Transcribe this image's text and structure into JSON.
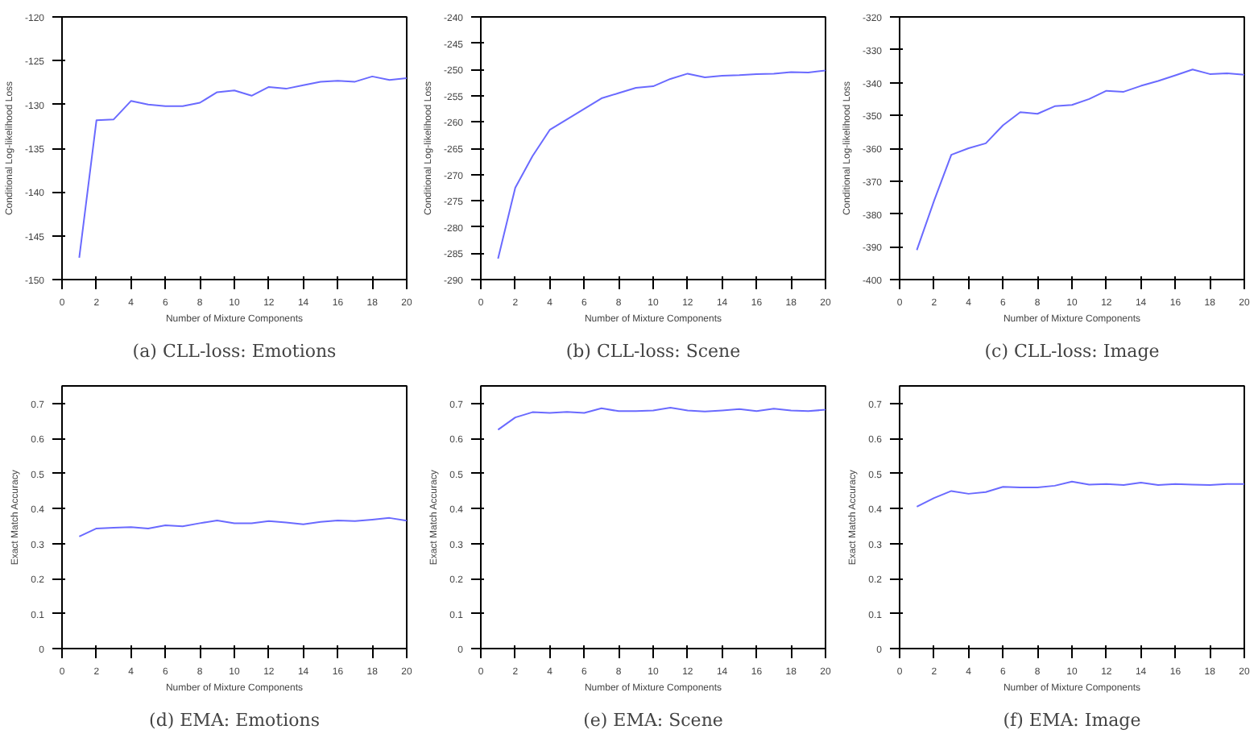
{
  "chart_data": [
    {
      "type": "line",
      "title": "(a) CLL-loss: Emotions",
      "xlabel": "Number of Mixture Components",
      "ylabel": "Conditional Log-likelihood Loss",
      "x": [
        1,
        2,
        3,
        4,
        5,
        6,
        7,
        8,
        9,
        10,
        11,
        12,
        13,
        14,
        15,
        16,
        17,
        18,
        19,
        20
      ],
      "xlim": [
        0,
        20
      ],
      "xticks": [
        0,
        2,
        4,
        6,
        8,
        10,
        12,
        14,
        16,
        18,
        20
      ],
      "ylim": [
        -150,
        -120
      ],
      "yticks": [
        -150,
        -145,
        -140,
        -135,
        -130,
        -125,
        -120
      ],
      "grid": false,
      "series": [
        {
          "color": "#6a6aff",
          "values": [
            -147.5,
            -131.8,
            -131.7,
            -129.6,
            -130.0,
            -130.2,
            -130.2,
            -129.8,
            -128.6,
            -128.4,
            -129.0,
            -128.0,
            -128.2,
            -127.8,
            -127.4,
            -127.3,
            -127.4,
            -126.8,
            -127.2,
            -127.0
          ]
        }
      ]
    },
    {
      "type": "line",
      "title": "(b) CLL-loss: Scene",
      "xlabel": "Number of Mixture Components",
      "ylabel": "Conditional Log-likelihood Loss",
      "x": [
        1,
        2,
        3,
        4,
        5,
        6,
        7,
        8,
        9,
        10,
        11,
        12,
        13,
        14,
        15,
        16,
        17,
        18,
        19,
        20
      ],
      "xlim": [
        0,
        20
      ],
      "xticks": [
        0,
        2,
        4,
        6,
        8,
        10,
        12,
        14,
        16,
        18,
        20
      ],
      "ylim": [
        -290,
        -240
      ],
      "yticks": [
        -290,
        -285,
        -280,
        -275,
        -270,
        -265,
        -260,
        -255,
        -250,
        -245,
        -240
      ],
      "grid": false,
      "series": [
        {
          "color": "#6a6aff",
          "values": [
            -286,
            -272.5,
            -266.5,
            -261.5,
            -259.5,
            -257.5,
            -255.5,
            -254.5,
            -253.5,
            -253.2,
            -251.8,
            -250.8,
            -251.5,
            -251.2,
            -251.1,
            -250.9,
            -250.8,
            -250.5,
            -250.6,
            -250.2
          ]
        }
      ]
    },
    {
      "type": "line",
      "title": "(c) CLL-loss: Image",
      "xlabel": "Number of Mixture Components",
      "ylabel": "Conditional Log-likelihood Loss",
      "x": [
        1,
        2,
        3,
        4,
        5,
        6,
        7,
        8,
        9,
        10,
        11,
        12,
        13,
        14,
        15,
        16,
        17,
        18,
        19,
        20
      ],
      "xlim": [
        0,
        20
      ],
      "xticks": [
        0,
        2,
        4,
        6,
        8,
        10,
        12,
        14,
        16,
        18,
        20
      ],
      "ylim": [
        -400,
        -320
      ],
      "yticks": [
        -400,
        -390,
        -380,
        -370,
        -360,
        -350,
        -340,
        -330,
        -320
      ],
      "grid": false,
      "series": [
        {
          "color": "#6a6aff",
          "values": [
            -391,
            -376,
            -362,
            -360,
            -358.5,
            -353,
            -349,
            -349.5,
            -347.2,
            -346.8,
            -345,
            -342.5,
            -342.8,
            -341,
            -339.5,
            -337.8,
            -336,
            -337.4,
            -337.2,
            -337.6
          ]
        }
      ]
    },
    {
      "type": "line",
      "title": "(d) EMA: Emotions",
      "xlabel": "Number of Mixture Components",
      "ylabel": "Exact Match Accuracy",
      "x": [
        1,
        2,
        3,
        4,
        5,
        6,
        7,
        8,
        9,
        10,
        11,
        12,
        13,
        14,
        15,
        16,
        17,
        18,
        19,
        20
      ],
      "xlim": [
        0,
        20
      ],
      "xticks": [
        0,
        2,
        4,
        6,
        8,
        10,
        12,
        14,
        16,
        18,
        20
      ],
      "ylim": [
        0,
        0.75
      ],
      "yticks": [
        0,
        0.1,
        0.2,
        0.3,
        0.4,
        0.5,
        0.6,
        0.7
      ],
      "grid": false,
      "series": [
        {
          "color": "#6a6aff",
          "values": [
            0.32,
            0.343,
            0.345,
            0.347,
            0.343,
            0.352,
            0.349,
            0.358,
            0.366,
            0.358,
            0.358,
            0.364,
            0.36,
            0.355,
            0.362,
            0.366,
            0.364,
            0.368,
            0.373,
            0.365
          ]
        }
      ]
    },
    {
      "type": "line",
      "title": "(e) EMA: Scene",
      "xlabel": "Number of Mixture Components",
      "ylabel": "Exact Match Accuracy",
      "x": [
        1,
        2,
        3,
        4,
        5,
        6,
        7,
        8,
        9,
        10,
        11,
        12,
        13,
        14,
        15,
        16,
        17,
        18,
        19,
        20
      ],
      "xlim": [
        0,
        20
      ],
      "xticks": [
        0,
        2,
        4,
        6,
        8,
        10,
        12,
        14,
        16,
        18,
        20
      ],
      "ylim": [
        0,
        0.75
      ],
      "yticks": [
        0,
        0.1,
        0.2,
        0.3,
        0.4,
        0.5,
        0.6,
        0.7
      ],
      "grid": false,
      "series": [
        {
          "color": "#6a6aff",
          "values": [
            0.625,
            0.66,
            0.675,
            0.673,
            0.676,
            0.673,
            0.686,
            0.678,
            0.678,
            0.68,
            0.688,
            0.68,
            0.677,
            0.68,
            0.684,
            0.678,
            0.685,
            0.68,
            0.678,
            0.682
          ]
        }
      ]
    },
    {
      "type": "line",
      "title": "(f) EMA: Image",
      "xlabel": "Number of Mixture Components",
      "ylabel": "Exact Match Accuracy",
      "x": [
        1,
        2,
        3,
        4,
        5,
        6,
        7,
        8,
        9,
        10,
        11,
        12,
        13,
        14,
        15,
        16,
        17,
        18,
        19,
        20
      ],
      "xlim": [
        0,
        20
      ],
      "xticks": [
        0,
        2,
        4,
        6,
        8,
        10,
        12,
        14,
        16,
        18,
        20
      ],
      "ylim": [
        0,
        0.75
      ],
      "yticks": [
        0,
        0.1,
        0.2,
        0.3,
        0.4,
        0.5,
        0.6,
        0.7
      ],
      "grid": false,
      "series": [
        {
          "color": "#6a6aff",
          "values": [
            0.405,
            0.43,
            0.45,
            0.442,
            0.447,
            0.462,
            0.46,
            0.46,
            0.465,
            0.477,
            0.468,
            0.47,
            0.467,
            0.474,
            0.467,
            0.47,
            0.468,
            0.467,
            0.47,
            0.47
          ]
        }
      ]
    }
  ]
}
